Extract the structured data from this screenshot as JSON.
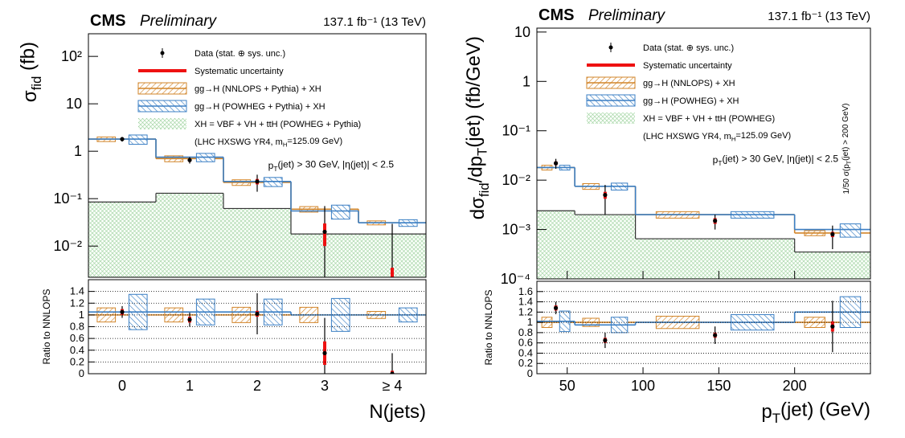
{
  "chart_data": [
    {
      "type": "histogram",
      "experiment": "CMS",
      "status": "Preliminary",
      "lumi": "137.1 fb⁻¹ (13 TeV)",
      "ylabel": [
        "σ",
        "fid",
        " (fb)"
      ],
      "xlabel": "N(jets)",
      "categories": [
        "0",
        "1",
        "2",
        "3",
        "≥ 4"
      ],
      "log_y": true,
      "ylim": [
        0.0022,
        300
      ],
      "yticks": [
        {
          "value": 0.01,
          "label": "10⁻²"
        },
        {
          "value": 0.1,
          "label": "10⁻¹"
        },
        1,
        10,
        {
          "value": 100,
          "label": "10²"
        }
      ],
      "series": [
        {
          "name": "Data (stat. ⊕ sys. unc.)",
          "color": "#000000",
          "values": [
            1.8,
            0.65,
            0.23,
            0.02,
            0.0015
          ],
          "errors": [
            0.2,
            0.1,
            0.09,
            0.05,
            0.028
          ]
        },
        {
          "name": "Systematic uncertainty",
          "color": "#ee1111",
          "errors": [
            0.1,
            0.05,
            0.03,
            0.01,
            0.002
          ]
        },
        {
          "name": "gg→H (NNLOPS + Pythia) + XH",
          "color": "#d2852a",
          "values": [
            1.8,
            0.7,
            0.22,
            0.06,
            0.031
          ],
          "errors": [
            0.2,
            0.1,
            0.03,
            0.008,
            0.003
          ]
        },
        {
          "name": "gg→H (POWHEG + Pythia) + XH",
          "color": "#3b7fc4",
          "values": [
            1.8,
            0.75,
            0.23,
            0.055,
            0.031
          ],
          "errors": [
            0.4,
            0.15,
            0.05,
            0.018,
            0.005
          ]
        },
        {
          "name": "XH = VBF + VH + ttH (POWHEG + Pythia)",
          "color": "#7cbf7c",
          "values": [
            0.085,
            0.13,
            0.062,
            0.018,
            0.018
          ]
        }
      ],
      "legend_note": [
        "(LHC HXSWG YR4, m",
        "H",
        "=125.09 GeV)"
      ],
      "annotation": [
        "p",
        "T",
        "(jet) > 30 GeV, |η(jet)| < 2.5"
      ],
      "ratio": {
        "ylabel": "Ratio to NNLOPS",
        "ylim": [
          0,
          1.6
        ],
        "yticks": [
          0,
          0.2,
          0.4,
          0.6,
          0.8,
          1,
          1.2,
          1.4
        ],
        "grid": true,
        "series": [
          {
            "values": [
              1.05,
              0.92,
              1.02,
              0.35,
              0.0
            ],
            "errors": [
              0.1,
              0.12,
              0.35,
              0.6,
              0.35
            ]
          },
          {
            "errors": [
              0.05,
              0.05,
              0.05,
              0.2,
              0.05
            ]
          },
          {
            "values": [
              1,
              1,
              1,
              1,
              1
            ],
            "errors": [
              0.12,
              0.12,
              0.13,
              0.13,
              0.06
            ]
          },
          {
            "values": [
              1.05,
              1.05,
              1.05,
              1.0,
              1.0
            ],
            "errors": [
              0.3,
              0.22,
              0.22,
              0.28,
              0.12
            ]
          }
        ]
      }
    },
    {
      "type": "histogram",
      "experiment": "CMS",
      "status": "Preliminary",
      "lumi": "137.1 fb⁻¹ (13 TeV)",
      "ylabel": [
        "dσ",
        "fid",
        "/dp",
        "T",
        "(jet) (fb/GeV)"
      ],
      "xlabel": [
        "p",
        "T",
        "(jet) (GeV)"
      ],
      "bins": [
        30,
        55,
        95,
        200,
        250
      ],
      "xlim": [
        30,
        250
      ],
      "xticks": [
        50,
        100,
        150,
        200
      ],
      "log_y": true,
      "ylim": [
        0.0001,
        12
      ],
      "yticks": [
        {
          "value": 0.0001,
          "label": "10⁻⁴"
        },
        {
          "value": 0.001,
          "label": "10⁻³"
        },
        {
          "value": 0.01,
          "label": "10⁻²"
        },
        {
          "value": 0.1,
          "label": "10⁻¹"
        },
        1,
        10
      ],
      "series": [
        {
          "name": "Data (stat. ⊕ sys. unc.)",
          "color": "#000000",
          "values": [
            0.022,
            0.005,
            0.0015,
            0.0008
          ],
          "errors": [
            0.005,
            0.003,
            0.0005,
            0.0004
          ]
        },
        {
          "name": "Systematic uncertainty",
          "color": "#ee1111",
          "errors": [
            0.002,
            0.0008,
            0.0002,
            0.0001
          ]
        },
        {
          "name": "gg→H (NNLOPS) + XH",
          "color": "#d2852a",
          "values": [
            0.018,
            0.0075,
            0.002,
            0.00085
          ],
          "errors": [
            0.002,
            0.001,
            0.0003,
            0.0001
          ]
        },
        {
          "name": "gg→H (POWHEG) + XH",
          "color": "#3b7fc4",
          "values": [
            0.018,
            0.0075,
            0.002,
            0.001
          ],
          "errors": [
            0.002,
            0.0012,
            0.0003,
            0.0003
          ]
        },
        {
          "name": "XH = VBF + VH + ttH (POWHEG)",
          "color": "#7cbf7c",
          "values": [
            0.0024,
            0.002,
            0.00065,
            0.00035
          ]
        }
      ],
      "legend_note": [
        "(LHC HXSWG YR4, m",
        "H",
        "=125.09 GeV)"
      ],
      "annotation": [
        "p",
        "T",
        "(jet) > 30 GeV, |η(jet)| < 2.5"
      ],
      "side_note": [
        "1/50 σ(p",
        "T",
        "(jet) > 200 GeV)"
      ],
      "ratio": {
        "ylabel": "Ratio to NNLOPS",
        "ylim": [
          0,
          1.8
        ],
        "yticks": [
          0,
          0.2,
          0.4,
          0.6,
          0.8,
          1,
          1.2,
          1.4,
          1.6
        ],
        "grid": true,
        "series": [
          {
            "values": [
              1.28,
              0.65,
              0.75,
              0.92
            ],
            "errors": [
              0.12,
              0.15,
              0.17,
              0.5
            ]
          },
          {
            "errors": [
              0.05,
              0.05,
              0.05,
              0.1
            ]
          },
          {
            "values": [
              1,
              1,
              1,
              1
            ],
            "errors": [
              0.1,
              0.08,
              0.12,
              0.1
            ]
          },
          {
            "values": [
              1.02,
              0.95,
              1.0,
              1.2
            ],
            "errors": [
              0.2,
              0.15,
              0.15,
              0.3
            ]
          }
        ]
      }
    }
  ]
}
